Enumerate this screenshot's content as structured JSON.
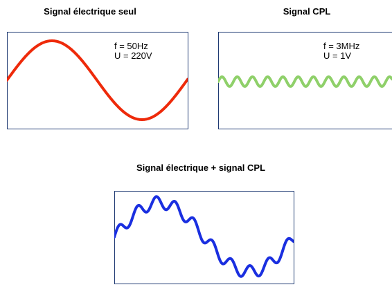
{
  "panels": [
    {
      "title": "Signal électrique seul",
      "labels": [
        "f = 50Hz",
        "U = 220V"
      ]
    },
    {
      "title": "Signal CPL",
      "labels": [
        "f = 3MHz",
        "U = 1V"
      ]
    },
    {
      "title": "Signal électrique + signal CPL",
      "labels": []
    }
  ]
}
